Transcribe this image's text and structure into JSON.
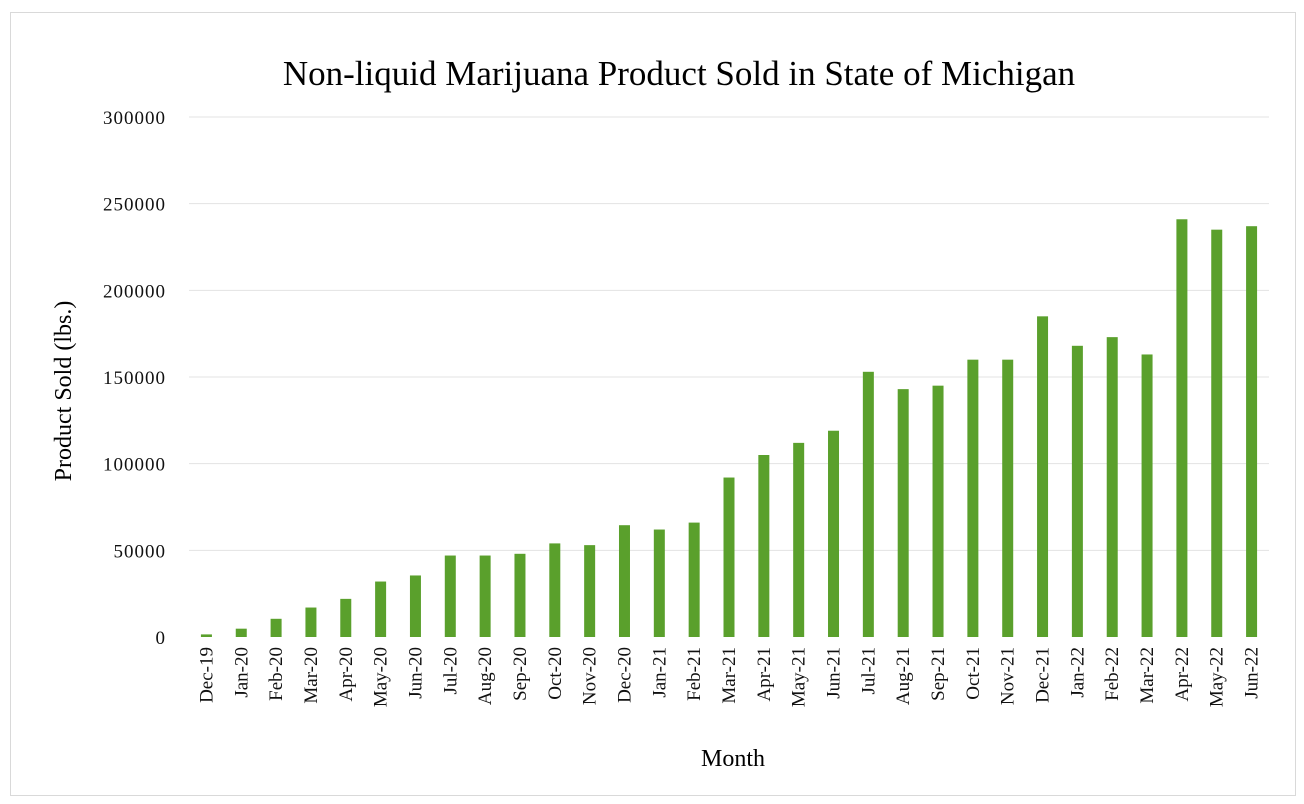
{
  "chart_data": {
    "type": "bar",
    "title": "Non-liquid Marijuana Product Sold in State of Michigan",
    "xlabel": "Month",
    "ylabel": "Product Sold (lbs.)",
    "ylim": [
      0,
      300000
    ],
    "yticks": [
      0,
      50000,
      100000,
      150000,
      200000,
      250000,
      300000
    ],
    "ytick_labels": [
      "0",
      "50000",
      "100000",
      "150000",
      "200000",
      "250000",
      "300000"
    ],
    "grid": true,
    "legend": "none",
    "bar_color": "#5aa02c",
    "categories": [
      "Dec-19",
      "Jan-20",
      "Feb-20",
      "Mar-20",
      "Apr-20",
      "May-20",
      "Jun-20",
      "Jul-20",
      "Aug-20",
      "Sep-20",
      "Oct-20",
      "Nov-20",
      "Dec-20",
      "Jan-21",
      "Feb-21",
      "Mar-21",
      "Apr-21",
      "May-21",
      "Jun-21",
      "Jul-21",
      "Aug-21",
      "Sep-21",
      "Oct-21",
      "Nov-21",
      "Dec-21",
      "Jan-22",
      "Feb-22",
      "Mar-22",
      "Apr-22",
      "May-22",
      "Jun-22"
    ],
    "values": [
      1500,
      4800,
      10500,
      17000,
      22000,
      32000,
      35500,
      47000,
      47000,
      48000,
      54000,
      53000,
      64500,
      62000,
      66000,
      92000,
      105000,
      112000,
      119000,
      153000,
      143000,
      145000,
      160000,
      160000,
      185000,
      168000,
      173000,
      163000,
      241000,
      235000,
      237000
    ]
  }
}
